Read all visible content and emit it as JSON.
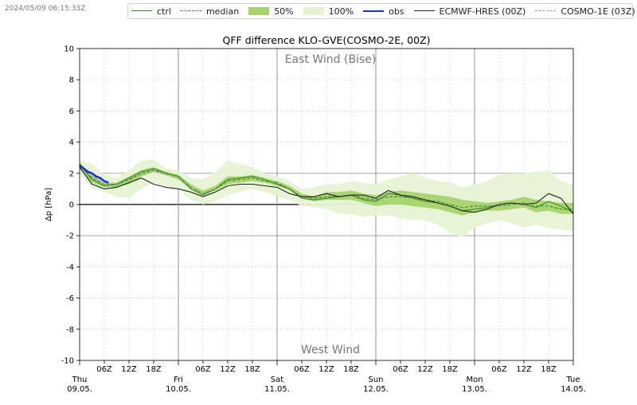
{
  "timestamp": "2024/05/09 06:15:33Z",
  "legend": [
    {
      "label": "ctrl",
      "kind": "line",
      "color": "#3a8a2a",
      "dash": "none"
    },
    {
      "label": "median",
      "kind": "line",
      "color": "#3a8a2a",
      "dash": "4,2"
    },
    {
      "label": "50%",
      "kind": "fill",
      "color": "#a8d36e"
    },
    {
      "label": "100%",
      "kind": "fill",
      "color": "#e6f3d3"
    },
    {
      "label": "obs",
      "kind": "line",
      "color": "#1a2ce0",
      "dash": "none",
      "width": 2.5
    },
    {
      "label": "ECMWF-HRES (00Z)",
      "kind": "line",
      "color": "#222222",
      "dash": "none"
    },
    {
      "label": "COSMO-1E (03Z)",
      "kind": "line",
      "color": "#9a9a9a",
      "dash": "2,2"
    }
  ],
  "chart_data": {
    "type": "line",
    "title": "QFF difference KLO-GVE(COSMO-2E, 00Z)",
    "ylabel": "Δp [hPa]",
    "ylim": [
      -10,
      10
    ],
    "yticks": [
      -10,
      -8,
      -6,
      -4,
      -2,
      0,
      2,
      4,
      6,
      8,
      10
    ],
    "xlim_hours": [
      0,
      120
    ],
    "annotation_top": "East Wind (Bise)",
    "annotation_bottom": "West Wind",
    "x_ticks_minor": [
      {
        "h": 6,
        "label": "06Z"
      },
      {
        "h": 12,
        "label": "12Z"
      },
      {
        "h": 18,
        "label": "18Z"
      },
      {
        "h": 30,
        "label": "06Z"
      },
      {
        "h": 36,
        "label": "12Z"
      },
      {
        "h": 42,
        "label": "18Z"
      },
      {
        "h": 54,
        "label": "06Z"
      },
      {
        "h": 60,
        "label": "12Z"
      },
      {
        "h": 66,
        "label": "18Z"
      },
      {
        "h": 78,
        "label": "06Z"
      },
      {
        "h": 84,
        "label": "12Z"
      },
      {
        "h": 90,
        "label": "18Z"
      },
      {
        "h": 102,
        "label": "06Z"
      },
      {
        "h": 108,
        "label": "12Z"
      },
      {
        "h": 114,
        "label": "18Z"
      }
    ],
    "x_ticks_major": [
      {
        "h": 0,
        "day": "Thu",
        "date": "09.05."
      },
      {
        "h": 24,
        "day": "Fri",
        "date": "10.05."
      },
      {
        "h": 48,
        "day": "Sat",
        "date": "11.05."
      },
      {
        "h": 72,
        "day": "Sun",
        "date": "12.05."
      },
      {
        "h": 96,
        "day": "Mon",
        "date": "13.05."
      },
      {
        "h": 120,
        "day": "Tue",
        "date": "14.05."
      }
    ],
    "series": [
      {
        "name": "100%",
        "kind": "band",
        "color": "#e6f3d3",
        "x": [
          0,
          3,
          6,
          9,
          12,
          15,
          18,
          21,
          24,
          27,
          30,
          33,
          36,
          39,
          42,
          45,
          48,
          51,
          54,
          57,
          60,
          63,
          66,
          69,
          72,
          75,
          78,
          81,
          84,
          87,
          90,
          93,
          96,
          99,
          102,
          105,
          108,
          111,
          114,
          117,
          120
        ],
        "lower": [
          2.0,
          1.0,
          0.8,
          0.5,
          0.4,
          1.0,
          1.4,
          1.2,
          1.0,
          0.3,
          0.0,
          0.2,
          0.6,
          0.8,
          1.0,
          0.8,
          0.5,
          0.3,
          -0.1,
          -0.2,
          -0.3,
          -0.6,
          -0.6,
          -0.8,
          -0.7,
          -0.7,
          -0.9,
          -1.0,
          -1.0,
          -1.3,
          -1.8,
          -2.1,
          -1.5,
          -1.2,
          -1.0,
          -1.2,
          -1.5,
          -1.3,
          -1.5,
          -1.6,
          -1.7
        ],
        "upper": [
          2.9,
          2.6,
          1.9,
          1.7,
          2.2,
          2.8,
          2.9,
          2.3,
          2.2,
          1.7,
          1.6,
          2.1,
          2.8,
          2.6,
          2.4,
          2.0,
          1.8,
          1.5,
          1.0,
          1.1,
          1.3,
          1.3,
          1.5,
          1.4,
          1.3,
          1.6,
          1.8,
          2.0,
          1.7,
          1.5,
          1.4,
          1.1,
          1.3,
          1.5,
          1.9,
          2.0,
          2.0,
          2.1,
          2.2,
          1.5,
          1.3
        ]
      },
      {
        "name": "50%",
        "kind": "band",
        "color": "#a8d36e",
        "x": [
          0,
          3,
          6,
          9,
          12,
          15,
          18,
          21,
          24,
          27,
          30,
          33,
          36,
          39,
          42,
          45,
          48,
          51,
          54,
          57,
          60,
          63,
          66,
          69,
          72,
          75,
          78,
          81,
          84,
          87,
          90,
          93,
          96,
          99,
          102,
          105,
          108,
          111,
          114,
          117,
          120
        ],
        "lower": [
          2.3,
          1.4,
          1.1,
          1.1,
          1.3,
          1.8,
          2.1,
          1.9,
          1.6,
          1.0,
          0.6,
          0.9,
          1.3,
          1.4,
          1.5,
          1.4,
          1.2,
          0.9,
          0.4,
          0.2,
          0.3,
          0.3,
          0.3,
          0.1,
          -0.1,
          0.0,
          0.0,
          -0.1,
          -0.2,
          -0.3,
          -0.5,
          -0.7,
          -0.5,
          -0.4,
          -0.4,
          -0.3,
          -0.2,
          -0.5,
          -0.4,
          -0.6,
          -0.6
        ],
        "upper": [
          2.7,
          1.9,
          1.4,
          1.4,
          1.8,
          2.2,
          2.4,
          2.1,
          1.9,
          1.3,
          0.9,
          1.2,
          1.8,
          1.8,
          1.9,
          1.7,
          1.5,
          1.2,
          0.7,
          0.5,
          0.8,
          0.8,
          0.9,
          0.7,
          0.6,
          0.8,
          0.9,
          0.8,
          0.7,
          0.6,
          0.5,
          0.3,
          0.2,
          0.1,
          0.2,
          0.3,
          0.5,
          0.3,
          0.2,
          0.1,
          0.1
        ]
      },
      {
        "name": "median",
        "kind": "line",
        "color": "#3a8a2a",
        "dash": "4,2",
        "x": [
          0,
          3,
          6,
          9,
          12,
          15,
          18,
          21,
          24,
          27,
          30,
          33,
          36,
          39,
          42,
          45,
          48,
          51,
          54,
          57,
          60,
          63,
          66,
          69,
          72,
          75,
          78,
          81,
          84,
          87,
          90,
          93,
          96,
          99,
          102,
          105,
          108,
          111,
          114,
          117,
          120
        ],
        "y": [
          2.5,
          1.7,
          1.3,
          1.3,
          1.6,
          2.0,
          2.2,
          2.0,
          1.8,
          1.1,
          0.7,
          1.0,
          1.5,
          1.6,
          1.7,
          1.5,
          1.4,
          1.0,
          0.5,
          0.4,
          0.5,
          0.5,
          0.6,
          0.4,
          0.3,
          0.5,
          0.5,
          0.4,
          0.3,
          0.2,
          0.0,
          -0.2,
          -0.1,
          -0.1,
          -0.1,
          0.0,
          0.1,
          -0.1,
          -0.1,
          -0.3,
          -0.3
        ]
      },
      {
        "name": "ctrl",
        "kind": "line",
        "color": "#3a8a2a",
        "dash": "none",
        "x": [
          0,
          3,
          6,
          9,
          12,
          15,
          18,
          21,
          24,
          27,
          30,
          33,
          36,
          39,
          42,
          45,
          48,
          51,
          54,
          57,
          60,
          63,
          66,
          69,
          72,
          75,
          78,
          81,
          84,
          87,
          90,
          93,
          96,
          99,
          102,
          105,
          108,
          111,
          114,
          117,
          120
        ],
        "y": [
          2.6,
          1.6,
          1.2,
          1.3,
          1.7,
          2.1,
          2.3,
          2.0,
          1.8,
          1.0,
          0.6,
          1.0,
          1.6,
          1.7,
          1.8,
          1.6,
          1.3,
          1.0,
          0.4,
          0.3,
          0.4,
          0.5,
          0.6,
          0.3,
          0.2,
          0.7,
          0.6,
          0.4,
          0.2,
          0.1,
          -0.1,
          -0.4,
          -0.3,
          -0.2,
          0.0,
          0.1,
          0.0,
          -0.2,
          0.2,
          -0.1,
          -0.5
        ]
      },
      {
        "name": "ECMWF-HRES (00Z)",
        "kind": "line",
        "color": "#222222",
        "dash": "none",
        "x": [
          0,
          3,
          6,
          9,
          12,
          15,
          18,
          21,
          24,
          27,
          30,
          33,
          36,
          39,
          42,
          45,
          48,
          51,
          54,
          57,
          60,
          63,
          66,
          69,
          72,
          75,
          78,
          81,
          84,
          87,
          90,
          93,
          96,
          99,
          102,
          105,
          108,
          111,
          114,
          117,
          120
        ],
        "y": [
          2.4,
          1.3,
          1.0,
          1.1,
          1.4,
          1.7,
          1.3,
          1.1,
          1.0,
          0.8,
          0.5,
          0.8,
          1.2,
          1.3,
          1.3,
          1.2,
          1.1,
          0.7,
          0.5,
          0.5,
          0.7,
          0.5,
          0.6,
          0.6,
          0.4,
          0.9,
          0.6,
          0.5,
          0.3,
          0.1,
          -0.1,
          -0.4,
          -0.5,
          -0.3,
          0.0,
          0.1,
          0.0,
          0.1,
          0.7,
          0.4,
          -0.6
        ]
      },
      {
        "name": "COSMO-1E (03Z)",
        "kind": "line",
        "color": "#9a9a9a",
        "dash": "2,2",
        "x": [
          3,
          6,
          9,
          12,
          15,
          18,
          21,
          24,
          27,
          30,
          33
        ],
        "y": [
          1.8,
          1.3,
          1.2,
          1.5,
          1.9,
          2.1,
          1.9,
          1.7,
          1.1,
          0.7,
          1.0
        ]
      },
      {
        "name": "obs",
        "kind": "line",
        "color": "#1a2ce0",
        "dash": "none",
        "width": 2.5,
        "x": [
          0,
          1,
          2,
          3,
          4,
          5,
          6,
          7
        ],
        "y": [
          2.5,
          2.3,
          2.1,
          2.0,
          1.8,
          1.7,
          1.5,
          1.4
        ]
      }
    ]
  }
}
